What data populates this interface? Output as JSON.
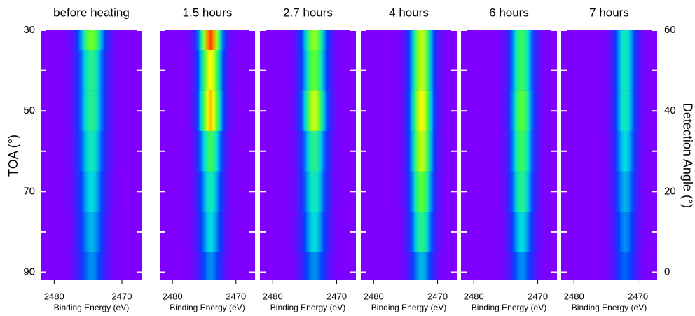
{
  "chart_data": {
    "type": "heatmap",
    "ylabel": "TOA (°)",
    "y2label": "Detection Angle (°)",
    "xlabel": "Binding Energy (eV)",
    "xlim": [
      2482,
      2467
    ],
    "xticks": [
      2480,
      2470
    ],
    "ylim": [
      30,
      92
    ],
    "yticks": [
      30,
      50,
      70,
      90
    ],
    "y2lim": [
      60,
      -2
    ],
    "y2ticks": [
      60,
      40,
      20,
      0
    ],
    "minor_ticks": [
      50,
      30,
      10
    ],
    "angles": [
      60,
      50,
      40,
      30,
      20,
      10,
      0
    ],
    "panels": [
      {
        "title": "before heating",
        "peak": 2474.5,
        "width": 1.4,
        "intensity": [
          0.68,
          0.55,
          0.55,
          0.5,
          0.45,
          0.4,
          0.35
        ]
      },
      {
        "title": "1.5 hours",
        "peak": 2474,
        "width": 1.3,
        "intensity": [
          0.95,
          0.8,
          0.85,
          0.6,
          0.5,
          0.45,
          0.35
        ]
      },
      {
        "title": "2.7 hours",
        "peak": 2473.5,
        "width": 1.4,
        "intensity": [
          0.7,
          0.65,
          0.75,
          0.55,
          0.5,
          0.45,
          0.35
        ]
      },
      {
        "title": "4 hours",
        "peak": 2472.5,
        "width": 1.3,
        "intensity": [
          0.75,
          0.75,
          0.8,
          0.75,
          0.65,
          0.55,
          0.4
        ]
      },
      {
        "title": "6 hours",
        "peak": 2472.5,
        "width": 1.3,
        "intensity": [
          0.6,
          0.6,
          0.65,
          0.6,
          0.55,
          0.45,
          0.35
        ]
      },
      {
        "title": "7 hours",
        "peak": 2472,
        "width": 1.2,
        "intensity": [
          0.5,
          0.5,
          0.5,
          0.45,
          0.4,
          0.35,
          0.3
        ]
      }
    ]
  }
}
